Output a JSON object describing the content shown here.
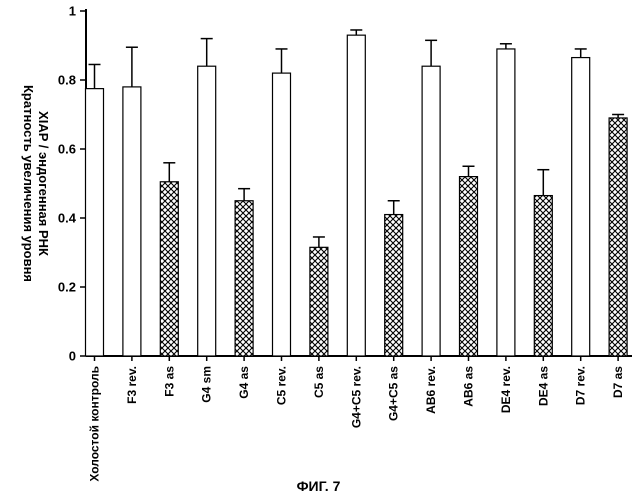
{
  "figure_caption": "ФИГ. 7",
  "chart_data": {
    "type": "bar",
    "categories": [
      "Холостой контроль",
      "F3 rev.",
      "F3 as",
      "G4 sm",
      "G4 as",
      "C5 rev.",
      "C5 as",
      "G4+C5 rev.",
      "G4+C5 as",
      "AB6 rev.",
      "AB6 as",
      "DE4 rev.",
      "DE4 as",
      "D7 rev.",
      "D7 as"
    ],
    "values": [
      0.775,
      0.78,
      0.505,
      0.84,
      0.45,
      0.82,
      0.315,
      0.93,
      0.41,
      0.84,
      0.52,
      0.89,
      0.465,
      0.865,
      0.69
    ],
    "errors": [
      0.07,
      0.115,
      0.055,
      0.08,
      0.035,
      0.07,
      0.03,
      0.015,
      0.04,
      0.075,
      0.03,
      0.015,
      0.075,
      0.025,
      0.01
    ],
    "fills": [
      "open",
      "open",
      "hatched",
      "open",
      "hatched",
      "open",
      "hatched",
      "open",
      "hatched",
      "open",
      "hatched",
      "open",
      "hatched",
      "open",
      "hatched"
    ],
    "title": "",
    "xlabel": "",
    "ylabel": "Кратность увеличения уровня XIAP / эндогенная РНК",
    "ylabel_lines": [
      "Кратность увеличения уровня",
      "XIAP / эндогенная РНК"
    ],
    "yticks": [
      "0",
      "0.2",
      "0.4",
      "0.6",
      "0.8",
      "1"
    ],
    "ylim": [
      0,
      1
    ],
    "grid": false,
    "legend": "none"
  }
}
